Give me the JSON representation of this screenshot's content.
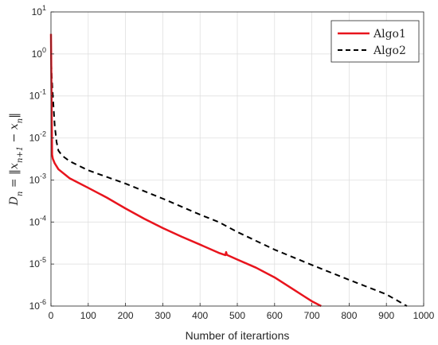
{
  "chart_data": {
    "type": "line",
    "title": "",
    "xlabel": "Number of iterartions",
    "ylabel": "D_n = ||x_{n+1} - x_n||",
    "ylabel_parts": {
      "lhs": "D",
      "lhs_sub": "n",
      "eq": " = ‖",
      "x1": "x",
      "x1_sub": "n+1",
      "minus": " − ",
      "x2": "x",
      "x2_sub": "n",
      "rhs": "‖"
    },
    "xlim": [
      0,
      1000
    ],
    "ylim": [
      1e-06,
      10
    ],
    "yscale": "log",
    "grid": true,
    "legend_position": "top-right",
    "x_ticks": [
      "0",
      "100",
      "200",
      "300",
      "400",
      "500",
      "600",
      "700",
      "800",
      "900",
      "1000"
    ],
    "y_ticks": [
      {
        "base": "10",
        "exp": "-6"
      },
      {
        "base": "10",
        "exp": "-5"
      },
      {
        "base": "10",
        "exp": "-4"
      },
      {
        "base": "10",
        "exp": "-3"
      },
      {
        "base": "10",
        "exp": "-2"
      },
      {
        "base": "10",
        "exp": "-1"
      },
      {
        "base": "10",
        "exp": "0"
      },
      {
        "base": "10",
        "exp": "1"
      }
    ],
    "series": [
      {
        "name": "Algo1",
        "color": "#e8141d",
        "style": "solid",
        "points": [
          [
            0,
            3
          ],
          [
            1,
            0.3
          ],
          [
            2,
            0.03
          ],
          [
            3,
            0.004
          ],
          [
            5,
            0.0032
          ],
          [
            10,
            0.0025
          ],
          [
            20,
            0.0018
          ],
          [
            50,
            0.0011
          ],
          [
            100,
            0.00065
          ],
          [
            150,
            0.00038
          ],
          [
            200,
            0.00021
          ],
          [
            250,
            0.00012
          ],
          [
            300,
            7.2e-05
          ],
          [
            350,
            4.5e-05
          ],
          [
            400,
            2.9e-05
          ],
          [
            450,
            1.85e-05
          ],
          [
            468,
            1.63e-05
          ],
          [
            470,
            1.92e-05
          ],
          [
            472,
            1.65e-05
          ],
          [
            500,
            1.28e-05
          ],
          [
            550,
            8.2e-06
          ],
          [
            600,
            4.8e-06
          ],
          [
            650,
            2.5e-06
          ],
          [
            700,
            1.3e-06
          ],
          [
            725,
            1e-06
          ]
        ]
      },
      {
        "name": "Algo2",
        "color": "#000000",
        "style": "dashed",
        "points": [
          [
            0,
            1
          ],
          [
            2,
            0.3
          ],
          [
            5,
            0.1
          ],
          [
            10,
            0.02
          ],
          [
            15,
            0.008
          ],
          [
            20,
            0.005
          ],
          [
            30,
            0.0038
          ],
          [
            50,
            0.0028
          ],
          [
            100,
            0.0017
          ],
          [
            200,
            0.00082
          ],
          [
            300,
            0.00036
          ],
          [
            400,
            0.00015
          ],
          [
            450,
            0.0001
          ],
          [
            500,
            5.8e-05
          ],
          [
            600,
            2.2e-05
          ],
          [
            700,
            9.5e-06
          ],
          [
            800,
            4.2e-06
          ],
          [
            900,
            1.9e-06
          ],
          [
            955,
            1e-06
          ]
        ]
      }
    ]
  }
}
